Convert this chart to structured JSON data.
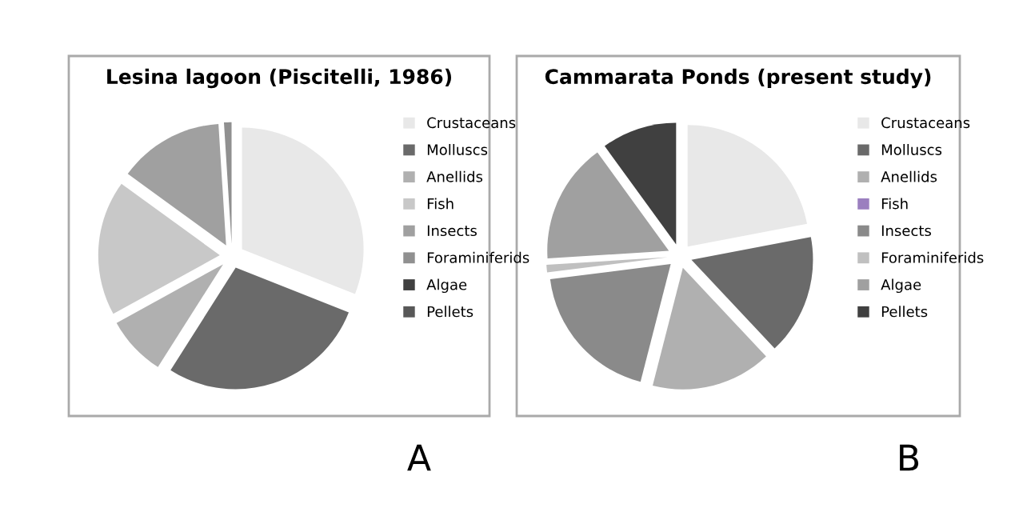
{
  "chart_data": [
    {
      "type": "pie",
      "title": "Lesina lagoon (Piscitelli, 1986)",
      "categories": [
        "Crustaceans",
        "Molluscs",
        "Anellids",
        "Fish",
        "Insects",
        "Foraminiferids",
        "Algae",
        "Pellets"
      ],
      "values": [
        31,
        28,
        8,
        18,
        14,
        1,
        0,
        0
      ],
      "colors": [
        "#e8e8e8",
        "#6a6a6a",
        "#b0b0b0",
        "#c8c8c8",
        "#a0a0a0",
        "#909090",
        "#404040",
        "#585858"
      ],
      "legend": "right",
      "annotations": [
        "A"
      ]
    },
    {
      "type": "pie",
      "title": "Cammarata Ponds (present study)",
      "categories": [
        "Crustaceans",
        "Molluscs",
        "Anellids",
        "Fish",
        "Insects",
        "Foraminiferids",
        "Algae",
        "Pellets"
      ],
      "values": [
        22,
        16,
        16,
        0,
        19,
        1,
        16,
        10
      ],
      "colors": [
        "#e8e8e8",
        "#6a6a6a",
        "#b0b0b0",
        "#9b7fbf",
        "#8a8a8a",
        "#c0c0c0",
        "#a0a0a0",
        "#404040"
      ],
      "legend": "right",
      "annotations": [
        "B"
      ]
    }
  ]
}
